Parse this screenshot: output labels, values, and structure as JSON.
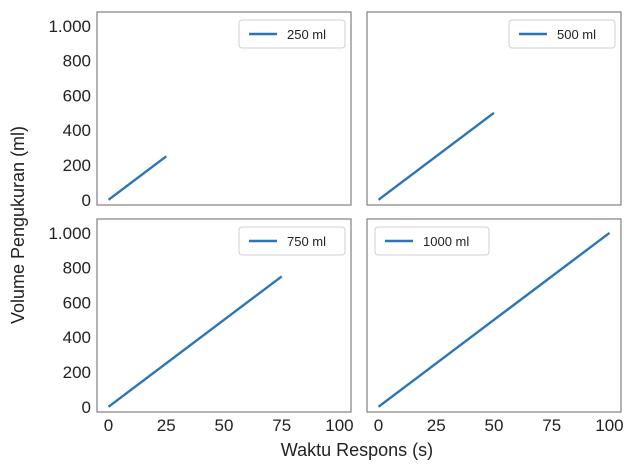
{
  "colors": {
    "series": "#2e75b6",
    "frame": "#808080"
  },
  "chart_data": {
    "type": "line",
    "layout": "2x2 grid, shared axes",
    "xlabel": "Waktu Respons (s)",
    "ylabel": "Volume Pengukuran (ml)",
    "xlim": [
      -5,
      105
    ],
    "ylim": [
      -30,
      1080
    ],
    "xticks": [
      0,
      25,
      50,
      75,
      100
    ],
    "xtick_labels": [
      "0",
      "25",
      "50",
      "75",
      "100"
    ],
    "yticks": [
      0,
      200,
      400,
      600,
      800,
      1000
    ],
    "ytick_labels": [
      "0",
      "200",
      "400",
      "600",
      "800",
      "1.000"
    ],
    "grid": false,
    "legend_position": "top-right",
    "panels": [
      {
        "name": "250 ml",
        "legend_position": "top-right",
        "x": [
          0,
          25
        ],
        "y": [
          0,
          250
        ]
      },
      {
        "name": "500 ml",
        "legend_position": "top-right",
        "x": [
          0,
          50
        ],
        "y": [
          0,
          500
        ]
      },
      {
        "name": "750 ml",
        "legend_position": "top-right",
        "x": [
          0,
          75
        ],
        "y": [
          0,
          750
        ]
      },
      {
        "name": "1000 ml",
        "legend_position": "top-left",
        "x": [
          0,
          100
        ],
        "y": [
          0,
          1000
        ]
      }
    ]
  }
}
